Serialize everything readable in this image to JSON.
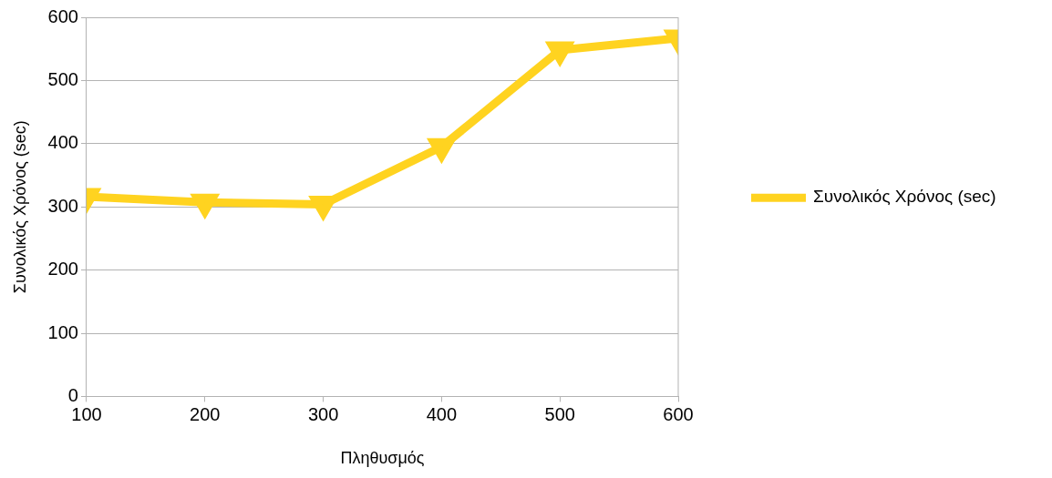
{
  "chart_data": {
    "type": "line",
    "xlabel": "Πληθυσμός",
    "ylabel": "Συνολικός Χρόνος (sec)",
    "x": [
      100,
      200,
      300,
      400,
      500,
      600
    ],
    "series": [
      {
        "name": "Συνολικός Χρόνος (sec)",
        "color": "#ffd320",
        "values": [
          316,
          307,
          304,
          395,
          548,
          567
        ]
      }
    ],
    "xlim": [
      100,
      600
    ],
    "xticks": [
      100,
      200,
      300,
      400,
      500,
      600
    ],
    "ylim": [
      0,
      600
    ],
    "yticks": [
      0,
      100,
      200,
      300,
      400,
      500,
      600
    ],
    "grid": "y",
    "legend": "right",
    "marker": "triangle",
    "line_style": "solid"
  }
}
